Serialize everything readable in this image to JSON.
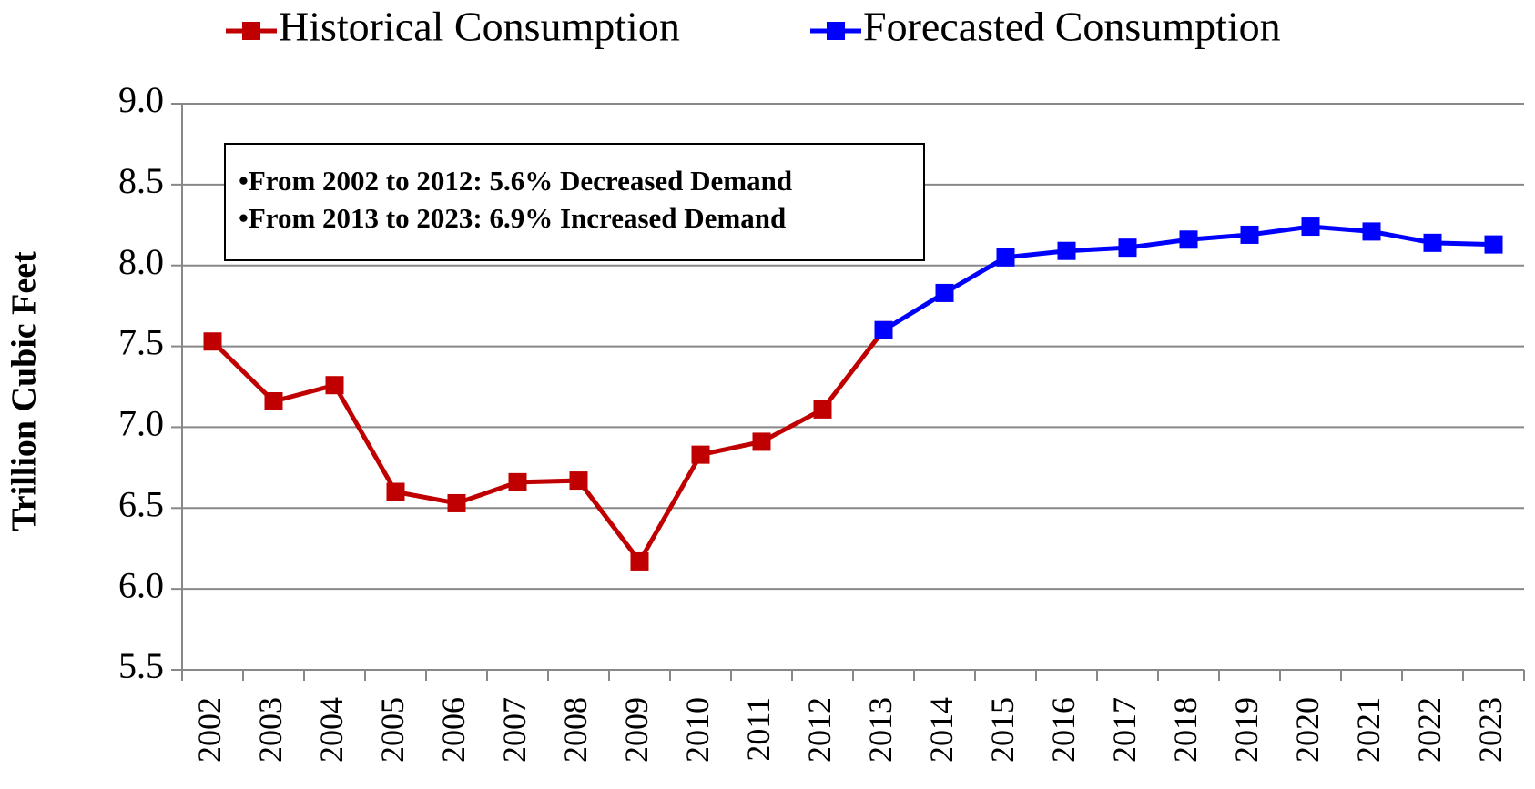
{
  "chart_data": {
    "type": "line",
    "y_label": "Trillion Cubic Feet",
    "annotations": [
      "•From 2002 to 2012:  5.6% Decreased Demand",
      "•From 2013 to 2023:  6.9% Increased Demand"
    ],
    "categories": [
      "2002",
      "2003",
      "2004",
      "2005",
      "2006",
      "2007",
      "2008",
      "2009",
      "2010",
      "2011",
      "2012",
      "2013",
      "2014",
      "2015",
      "2016",
      "2017",
      "2018",
      "2019",
      "2020",
      "2021",
      "2022",
      "2023"
    ],
    "series": [
      {
        "name": "Historical Consumption",
        "color": "#c00000",
        "values": [
          7.53,
          7.16,
          7.26,
          6.6,
          6.53,
          6.66,
          6.67,
          6.17,
          6.83,
          6.91,
          7.11,
          7.6,
          null,
          null,
          null,
          null,
          null,
          null,
          null,
          null,
          null,
          null
        ]
      },
      {
        "name": "Forecasted Consumption",
        "color": "#0000ff",
        "values": [
          null,
          null,
          null,
          null,
          null,
          null,
          null,
          null,
          null,
          null,
          null,
          7.6,
          7.83,
          8.05,
          8.09,
          8.11,
          8.16,
          8.19,
          8.24,
          8.21,
          8.14,
          8.13
        ]
      }
    ],
    "ylim": [
      5.5,
      9.0
    ],
    "yticks": [
      {
        "value": 5.5,
        "label": "5.5"
      },
      {
        "value": 6.0,
        "label": "6.0"
      },
      6.5,
      {
        "value": 7.0,
        "label": "7.0"
      },
      7.5,
      {
        "value": 8.0,
        "label": "8.0"
      },
      8.5,
      {
        "value": 9.0,
        "label": "9.0"
      }
    ],
    "grid": true,
    "legend": "top"
  }
}
